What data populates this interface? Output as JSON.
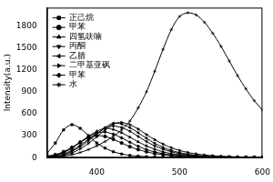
{
  "chart_data": {
    "type": "line",
    "y_label": "Intensity(a.u.)",
    "x": [
      340,
      350,
      360,
      370,
      380,
      390,
      400,
      410,
      420,
      430,
      440,
      450,
      460,
      470,
      480,
      490,
      500,
      510,
      520,
      530,
      540,
      550,
      560,
      570,
      580,
      590,
      600
    ],
    "series": [
      {
        "name": "正己烷",
        "color": "#000000",
        "marker": "square",
        "values": [
          60,
          200,
          380,
          450,
          400,
          300,
          200,
          130,
          80,
          50,
          30,
          20,
          12,
          8,
          5,
          4,
          3,
          3,
          3,
          3,
          3,
          3,
          3,
          3,
          3,
          3,
          3
        ]
      },
      {
        "name": "甲苯",
        "color": "#000000",
        "marker": "circle",
        "values": [
          20,
          40,
          80,
          140,
          210,
          270,
          300,
          290,
          250,
          200,
          150,
          110,
          80,
          55,
          40,
          28,
          20,
          14,
          10,
          8,
          6,
          5,
          4,
          3,
          3,
          2,
          2
        ]
      },
      {
        "name": "四氢呋喃",
        "color": "#000000",
        "marker": "triangle",
        "values": [
          10,
          30,
          70,
          130,
          210,
          290,
          360,
          400,
          385,
          340,
          280,
          215,
          160,
          115,
          80,
          55,
          38,
          26,
          18,
          12,
          9,
          7,
          5,
          4,
          3,
          3,
          2
        ]
      },
      {
        "name": "丙酮",
        "color": "#000000",
        "marker": "triangle-down",
        "values": [
          8,
          20,
          50,
          100,
          170,
          250,
          330,
          400,
          430,
          410,
          360,
          290,
          220,
          160,
          115,
          80,
          55,
          38,
          26,
          18,
          12,
          9,
          7,
          5,
          4,
          3,
          3
        ]
      },
      {
        "name": "乙腈",
        "color": "#000000",
        "marker": "triangle-left",
        "values": [
          5,
          15,
          40,
          85,
          150,
          230,
          320,
          410,
          470,
          460,
          410,
          340,
          265,
          195,
          140,
          98,
          68,
          46,
          32,
          22,
          15,
          11,
          8,
          6,
          4,
          3,
          3
        ]
      },
      {
        "name": "二甲基亚砜",
        "color": "#000000",
        "marker": "triangle-right",
        "values": [
          5,
          12,
          30,
          65,
          120,
          195,
          285,
          380,
          460,
          480,
          450,
          390,
          315,
          245,
          185,
          135,
          98,
          70,
          50,
          36,
          26,
          19,
          14,
          10,
          8,
          6,
          5
        ]
      },
      {
        "name": "甲苯",
        "color": "#000000",
        "marker": "diamond",
        "values": [
          15,
          35,
          75,
          135,
          210,
          285,
          335,
          350,
          320,
          270,
          210,
          155,
          110,
          78,
          54,
          38,
          26,
          18,
          13,
          9,
          7,
          5,
          4,
          3,
          3,
          2,
          2
        ]
      },
      {
        "name": "水",
        "color": "#000000",
        "marker": "star",
        "values": [
          5,
          10,
          20,
          40,
          70,
          110,
          160,
          220,
          290,
          380,
          500,
          680,
          900,
          1180,
          1480,
          1750,
          1930,
          1980,
          1950,
          1850,
          1700,
          1520,
          1320,
          1120,
          940,
          780,
          650
        ]
      }
    ],
    "xlim": [
      340,
      600
    ],
    "xticks": [
      400,
      500,
      600
    ],
    "ylim": [
      0,
      2050
    ],
    "yticks": [
      0,
      300,
      600,
      900,
      1200,
      1500,
      1800
    ],
    "grid": false,
    "legend": "upper left"
  }
}
